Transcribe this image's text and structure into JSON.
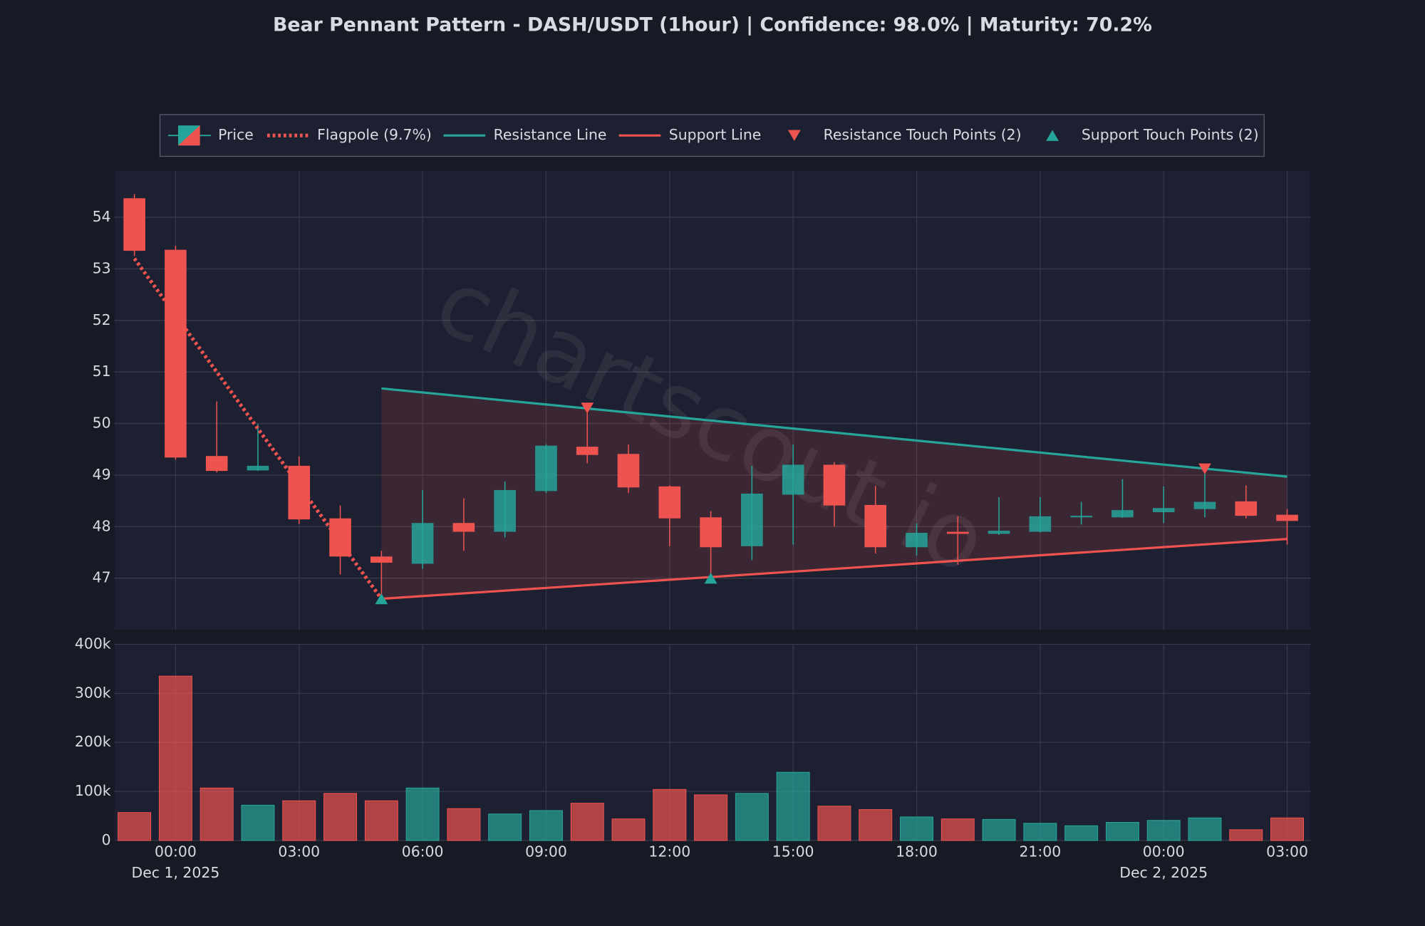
{
  "chart_data": {
    "type": "candlestick",
    "title": "Bear Pennant Pattern - DASH/USDT (1hour) | Confidence: 98.0% | Maturity: 70.2%",
    "watermark": "chartscout.io",
    "x": [
      "2025-11-30 23:00",
      "2025-12-01 00:00",
      "2025-12-01 01:00",
      "2025-12-01 02:00",
      "2025-12-01 03:00",
      "2025-12-01 04:00",
      "2025-12-01 05:00",
      "2025-12-01 06:00",
      "2025-12-01 07:00",
      "2025-12-01 08:00",
      "2025-12-01 09:00",
      "2025-12-01 10:00",
      "2025-12-01 11:00",
      "2025-12-01 12:00",
      "2025-12-01 13:00",
      "2025-12-01 14:00",
      "2025-12-01 15:00",
      "2025-12-01 16:00",
      "2025-12-01 17:00",
      "2025-12-01 18:00",
      "2025-12-01 19:00",
      "2025-12-01 20:00",
      "2025-12-01 21:00",
      "2025-12-01 22:00",
      "2025-12-01 23:00",
      "2025-12-02 00:00",
      "2025-12-02 01:00",
      "2025-12-02 02:00",
      "2025-12-02 03:00"
    ],
    "price": {
      "name": "Price",
      "up_color": "#26a69a",
      "down_color": "#ef5350",
      "open": [
        54.37,
        53.37,
        49.37,
        49.09,
        49.18,
        48.16,
        47.42,
        47.28,
        48.07,
        47.9,
        48.69,
        49.55,
        49.41,
        48.78,
        48.18,
        47.62,
        48.62,
        49.2,
        48.42,
        47.6,
        47.9,
        47.86,
        47.9,
        48.18,
        48.18,
        48.28,
        48.34,
        48.49,
        48.23
      ],
      "high": [
        54.45,
        53.45,
        50.43,
        49.99,
        49.36,
        48.41,
        47.53,
        48.71,
        48.55,
        48.87,
        49.6,
        50.34,
        49.59,
        48.8,
        48.3,
        49.18,
        49.59,
        49.25,
        48.79,
        48.06,
        48.2,
        48.57,
        48.57,
        48.48,
        48.92,
        48.78,
        49.16,
        48.8,
        48.34
      ],
      "low": [
        53.25,
        49.3,
        49.05,
        49.08,
        48.05,
        47.07,
        46.6,
        47.18,
        47.53,
        47.79,
        48.65,
        49.23,
        48.65,
        47.62,
        47.07,
        47.35,
        47.65,
        48.0,
        47.48,
        47.44,
        47.26,
        47.84,
        47.89,
        48.04,
        48.17,
        48.07,
        48.18,
        48.16,
        47.65
      ],
      "close": [
        53.35,
        49.34,
        49.08,
        49.18,
        48.14,
        47.42,
        47.3,
        48.07,
        47.9,
        48.71,
        49.57,
        49.39,
        48.76,
        48.16,
        47.6,
        48.64,
        49.2,
        48.41,
        47.6,
        47.88,
        47.86,
        47.92,
        48.2,
        48.21,
        48.32,
        48.36,
        48.48,
        48.21,
        48.11
      ]
    },
    "ylim": [
      46.0,
      54.9
    ],
    "yticks": [
      47,
      48,
      49,
      50,
      51,
      52,
      53,
      54
    ],
    "xlim": [
      "2025-11-30 22:31",
      "2025-12-02 03:34"
    ],
    "xticks": [
      {
        "value": "2025-12-01 00:00",
        "label": "00:00",
        "date": "Dec 1, 2025"
      },
      {
        "value": "2025-12-01 03:00",
        "label": "03:00"
      },
      {
        "value": "2025-12-01 06:00",
        "label": "06:00"
      },
      {
        "value": "2025-12-01 09:00",
        "label": "09:00"
      },
      {
        "value": "2025-12-01 12:00",
        "label": "12:00"
      },
      {
        "value": "2025-12-01 15:00",
        "label": "15:00"
      },
      {
        "value": "2025-12-01 18:00",
        "label": "18:00"
      },
      {
        "value": "2025-12-01 21:00",
        "label": "21:00"
      },
      {
        "value": "2025-12-02 00:00",
        "label": "00:00",
        "date": "Dec 2, 2025"
      },
      {
        "value": "2025-12-02 03:00",
        "label": "03:00"
      }
    ],
    "volume": {
      "values": [
        57000,
        335000,
        107000,
        72000,
        81000,
        96000,
        81000,
        107000,
        65000,
        54000,
        61000,
        76000,
        44000,
        104000,
        93000,
        96000,
        139000,
        70000,
        63000,
        48000,
        44000,
        43000,
        35000,
        30000,
        37000,
        41000,
        46000,
        22000,
        46000
      ],
      "ylim": [
        0,
        400000
      ],
      "yticks": [
        0,
        {
          "value": 100000,
          "label": "100k"
        },
        {
          "value": 200000,
          "label": "200k"
        },
        {
          "value": 300000,
          "label": "300k"
        },
        {
          "value": 400000,
          "label": "400k"
        }
      ]
    },
    "lines": [
      {
        "name": "Flagpole (9.7%)",
        "color": "#ef5350",
        "style": "dotted",
        "x": [
          "2025-11-30 23:00",
          "2025-12-01 05:00"
        ],
        "values": [
          53.2,
          46.6
        ]
      },
      {
        "name": "Resistance Line",
        "color": "#26a69a",
        "style": "solid",
        "x": [
          "2025-12-01 05:00",
          "2025-12-02 03:00"
        ],
        "values": [
          50.68,
          48.97
        ]
      },
      {
        "name": "Support Line",
        "color": "#ef5350",
        "style": "solid",
        "x": [
          "2025-12-01 05:00",
          "2025-12-02 03:00"
        ],
        "values": [
          46.6,
          47.76
        ]
      }
    ],
    "pattern_fill": "#ef5350",
    "markers": [
      {
        "name": "Resistance Touch Points (2)",
        "color": "#ef5350",
        "shape": "down",
        "x": [
          "2025-12-01 10:00",
          "2025-12-02 01:00"
        ],
        "values": [
          50.3,
          49.12
        ]
      },
      {
        "name": "Support Touch Points (2)",
        "color": "#26a69a",
        "shape": "up",
        "x": [
          "2025-12-01 05:00",
          "2025-12-01 13:00"
        ],
        "values": [
          46.6,
          47.0
        ]
      }
    ],
    "grid": true
  }
}
